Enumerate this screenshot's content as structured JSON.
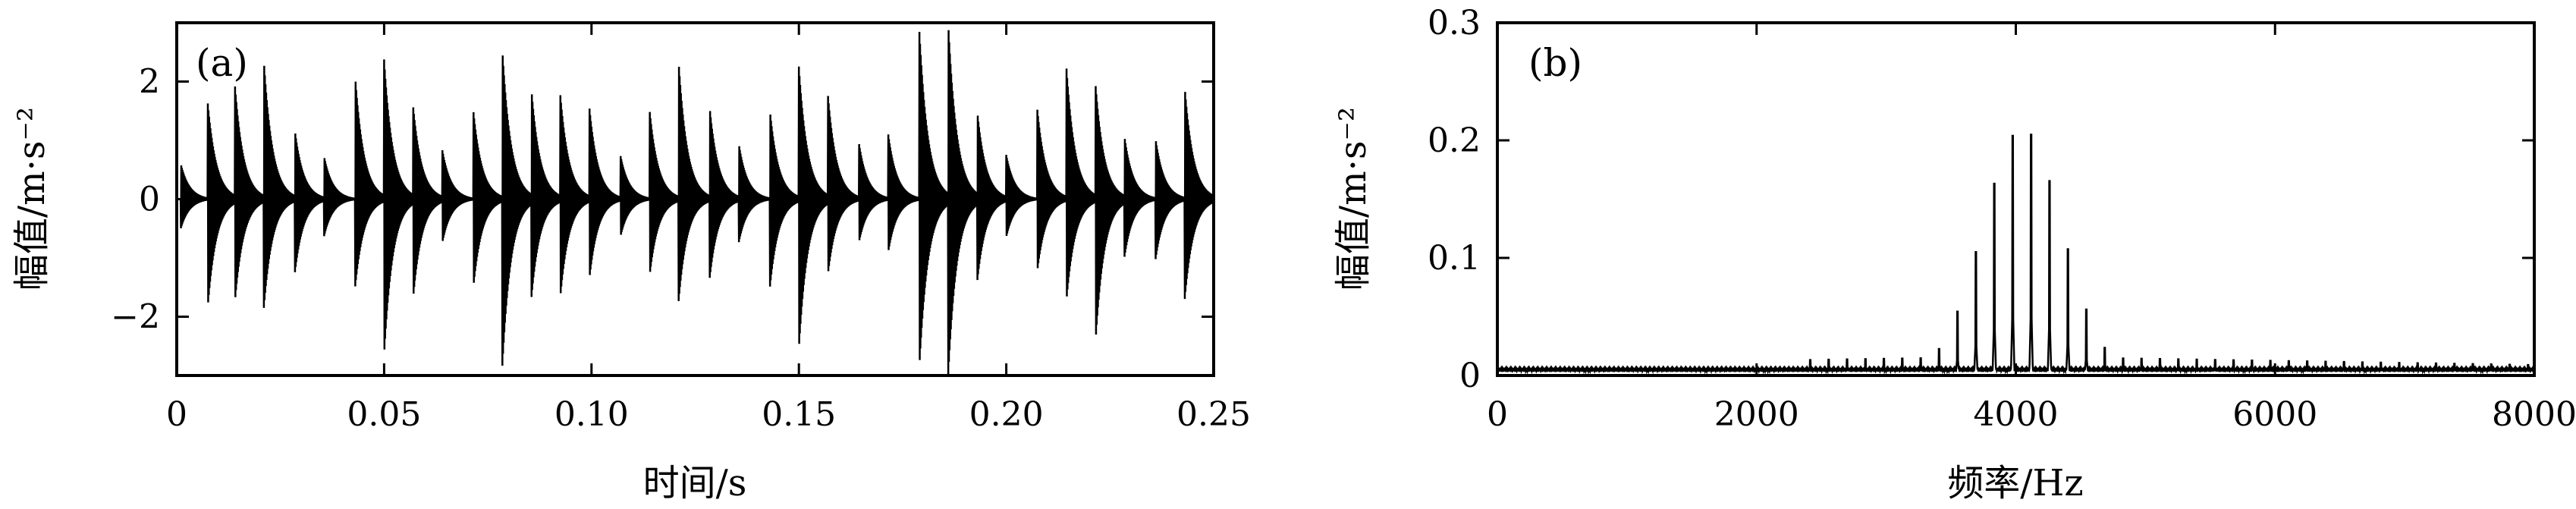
{
  "chart_data": [
    {
      "panel_label": "(a)",
      "type": "line",
      "xlabel": "时间/s",
      "ylabel": "幅值/m·s⁻²",
      "xlim": [
        0,
        0.25
      ],
      "ylim": [
        -3,
        3
      ],
      "xticks": [
        0,
        0.05,
        0.1,
        0.15,
        0.2,
        0.25
      ],
      "xtick_labels": [
        "0",
        "0.05",
        "0.10",
        "0.15",
        "0.20",
        "0.25"
      ],
      "yticks": [
        -2,
        0,
        2
      ],
      "ytick_labels": [
        "−2",
        "0",
        "2"
      ],
      "decay": 0.0021,
      "impacts": [
        {
          "t": 0.001,
          "pos": 0.6,
          "neg": -0.5
        },
        {
          "t": 0.0075,
          "pos": 1.6,
          "neg": -1.8
        },
        {
          "t": 0.014,
          "pos": 1.9,
          "neg": -1.7
        },
        {
          "t": 0.021,
          "pos": 2.3,
          "neg": -1.8
        },
        {
          "t": 0.0285,
          "pos": 1.1,
          "neg": -1.2
        },
        {
          "t": 0.0355,
          "pos": 0.7,
          "neg": -0.6
        },
        {
          "t": 0.043,
          "pos": 2.1,
          "neg": -1.5
        },
        {
          "t": 0.05,
          "pos": 2.3,
          "neg": -2.6
        },
        {
          "t": 0.057,
          "pos": 1.5,
          "neg": -1.6
        },
        {
          "t": 0.064,
          "pos": 0.8,
          "neg": -0.7
        },
        {
          "t": 0.0715,
          "pos": 1.5,
          "neg": -1.5
        },
        {
          "t": 0.0785,
          "pos": 2.5,
          "neg": -2.8
        },
        {
          "t": 0.0855,
          "pos": 1.8,
          "neg": -1.6
        },
        {
          "t": 0.0925,
          "pos": 1.7,
          "neg": -1.6
        },
        {
          "t": 0.0995,
          "pos": 1.5,
          "neg": -1.3
        },
        {
          "t": 0.107,
          "pos": 0.7,
          "neg": -0.6
        },
        {
          "t": 0.114,
          "pos": 1.5,
          "neg": -1.3
        },
        {
          "t": 0.121,
          "pos": 2.3,
          "neg": -1.7
        },
        {
          "t": 0.1285,
          "pos": 1.5,
          "neg": -1.3
        },
        {
          "t": 0.1355,
          "pos": 0.9,
          "neg": -0.7
        },
        {
          "t": 0.143,
          "pos": 1.5,
          "neg": -1.5
        },
        {
          "t": 0.15,
          "pos": 2.2,
          "neg": -2.5
        },
        {
          "t": 0.157,
          "pos": 1.7,
          "neg": -1.2
        },
        {
          "t": 0.1645,
          "pos": 0.9,
          "neg": -0.7
        },
        {
          "t": 0.1715,
          "pos": 1.1,
          "neg": -0.9
        },
        {
          "t": 0.179,
          "pos": 2.9,
          "neg": -2.9
        },
        {
          "t": 0.186,
          "pos": 2.9,
          "neg": -2.9
        },
        {
          "t": 0.193,
          "pos": 1.4,
          "neg": -1.3
        },
        {
          "t": 0.2,
          "pos": 0.7,
          "neg": -0.6
        },
        {
          "t": 0.2075,
          "pos": 1.5,
          "neg": -1.2
        },
        {
          "t": 0.2145,
          "pos": 2.2,
          "neg": -1.7
        },
        {
          "t": 0.2215,
          "pos": 1.9,
          "neg": -2.4
        },
        {
          "t": 0.2285,
          "pos": 1.0,
          "neg": -0.9
        },
        {
          "t": 0.236,
          "pos": 1.0,
          "neg": -1.0
        },
        {
          "t": 0.243,
          "pos": 1.9,
          "neg": -1.7
        }
      ]
    },
    {
      "panel_label": "(b)",
      "type": "line",
      "xlabel": "频率/Hz",
      "ylabel": "幅值/m·s⁻²",
      "xlim": [
        0,
        8000
      ],
      "ylim": [
        0,
        0.3
      ],
      "xticks": [
        0,
        2000,
        4000,
        6000,
        8000
      ],
      "xtick_labels": [
        "0",
        "2000",
        "4000",
        "6000",
        "8000"
      ],
      "yticks": [
        0,
        0.1,
        0.2,
        0.3
      ],
      "ytick_labels": [
        "0",
        "0.1",
        "0.2",
        "0.3"
      ],
      "spectrum": {
        "harmonic_spacing_hz": 142,
        "center_hz": 4050,
        "peak": 0.21,
        "width_hz": 430,
        "baseline": 0.006,
        "tail_peak": 0.016,
        "secondary_ratio": 0.33
      }
    }
  ]
}
